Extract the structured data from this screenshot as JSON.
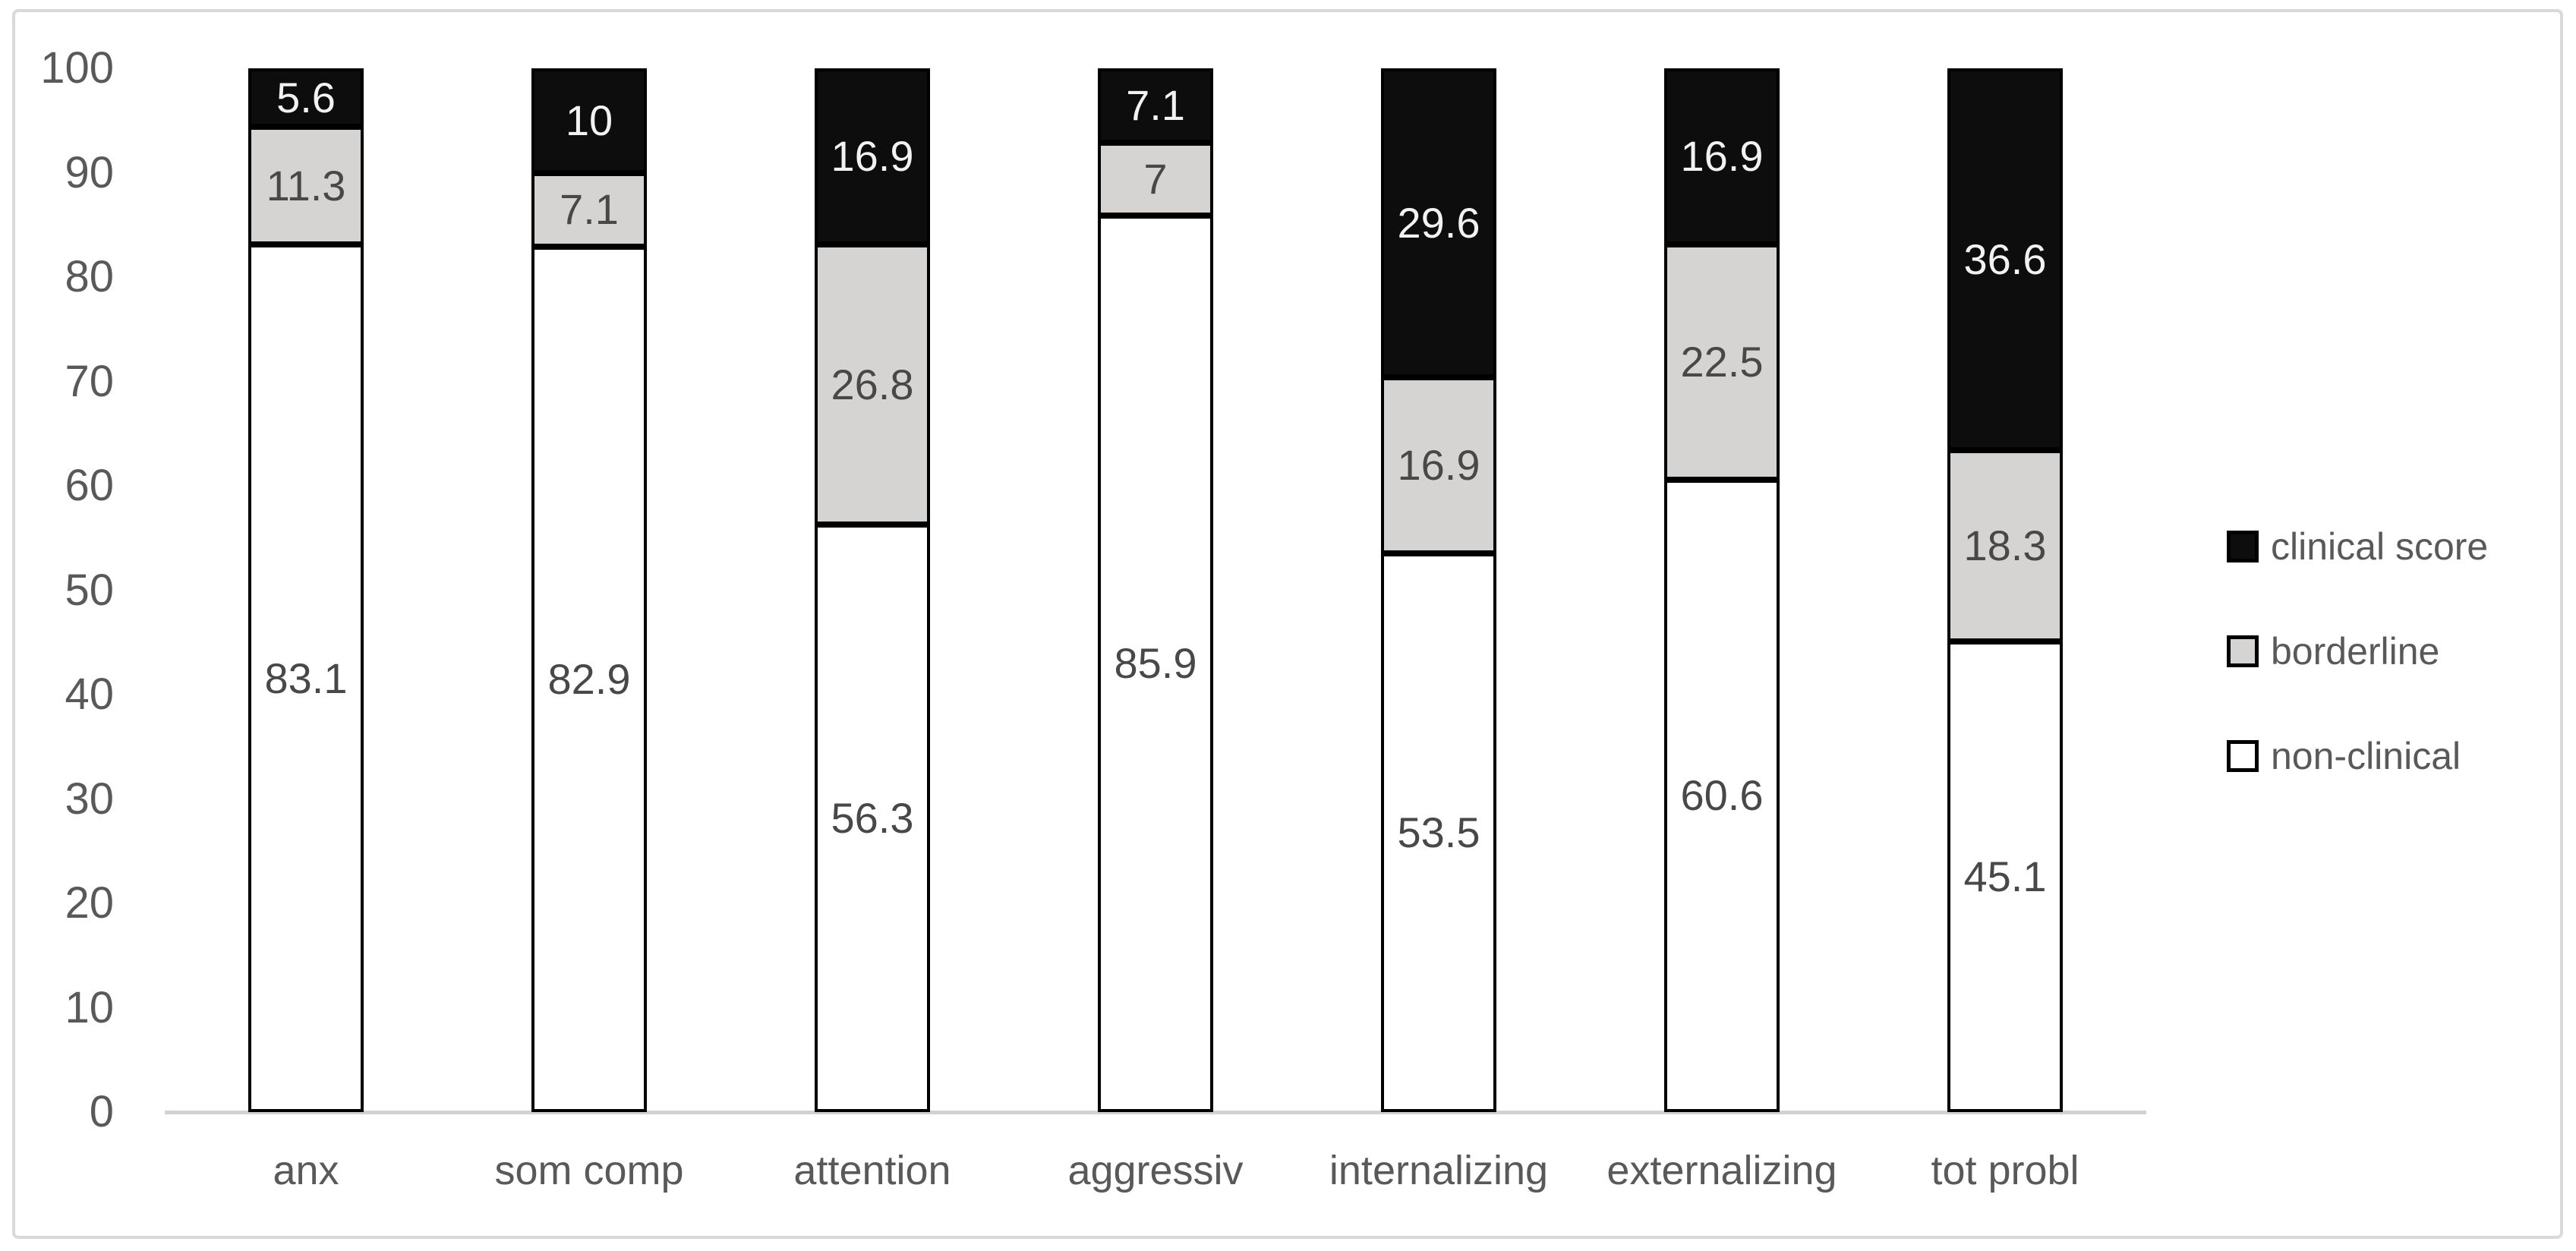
{
  "figure": {
    "background": "#ffffff",
    "frame_border_color": "#d9d9d9",
    "axis_line_color": "#d2d2d2",
    "axis_text_color": "#595959",
    "legend_text_color": "#595959",
    "bar_outline_color": "#000000",
    "label_on_dark_color": "#f2f2f2",
    "label_on_light_color": "#484848"
  },
  "chart_data": {
    "type": "bar",
    "stacked": true,
    "percent_stacked": true,
    "title": "",
    "xlabel": "",
    "ylabel": "",
    "ylim": [
      0,
      100
    ],
    "yticks": [
      0,
      10,
      20,
      30,
      40,
      50,
      60,
      70,
      80,
      90,
      100
    ],
    "grid": false,
    "legend_position": "right",
    "categories": [
      "anx",
      "som comp",
      "attention",
      "aggressiv",
      "internalizing",
      "externalizing",
      "tot probl"
    ],
    "series": [
      {
        "name": "non-clinical",
        "color": "#ffffff",
        "values": [
          83.1,
          82.9,
          56.3,
          85.9,
          53.5,
          60.6,
          45.1
        ]
      },
      {
        "name": "borderline",
        "color": "#d6d3d3",
        "values": [
          11.3,
          7.1,
          26.8,
          7,
          16.9,
          22.5,
          18.3
        ]
      },
      {
        "name": "clinical score",
        "color": "#0d0d0d",
        "values": [
          5.6,
          10,
          16.9,
          7.1,
          29.6,
          16.9,
          36.6
        ]
      }
    ],
    "legend": [
      {
        "label": "clinical score",
        "fill": "#0d0d0d",
        "border": "#000000"
      },
      {
        "label": "borderline",
        "fill": "#d6d3d3",
        "border": "#000000"
      },
      {
        "label": "non-clinical",
        "fill": "#ffffff",
        "border": "#000000"
      }
    ]
  }
}
